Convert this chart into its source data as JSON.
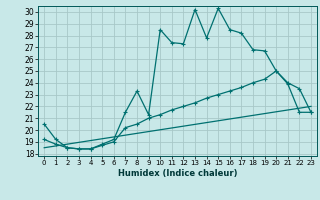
{
  "xlabel": "Humidex (Indice chaleur)",
  "bg_color": "#c8e8e8",
  "grid_color": "#a8c8c8",
  "line_color": "#007070",
  "xlim": [
    -0.5,
    23.5
  ],
  "ylim": [
    17.8,
    30.5
  ],
  "xticks": [
    0,
    1,
    2,
    3,
    4,
    5,
    6,
    7,
    8,
    9,
    10,
    11,
    12,
    13,
    14,
    15,
    16,
    17,
    18,
    19,
    20,
    21,
    22,
    23
  ],
  "yticks": [
    18,
    19,
    20,
    21,
    22,
    23,
    24,
    25,
    26,
    27,
    28,
    29,
    30
  ],
  "curve1_x": [
    0,
    1,
    2,
    3,
    4,
    5,
    6,
    7,
    8,
    9,
    10,
    11,
    12,
    13,
    14,
    15,
    16,
    17,
    18,
    19,
    20,
    21,
    22,
    23
  ],
  "curve1_y": [
    20.5,
    19.2,
    18.5,
    18.4,
    18.4,
    18.8,
    19.2,
    21.5,
    23.3,
    21.3,
    28.5,
    27.4,
    27.3,
    30.2,
    27.8,
    30.3,
    28.5,
    28.2,
    26.8,
    26.7,
    25.0,
    23.9,
    21.5,
    21.5
  ],
  "curve2_x": [
    0,
    1,
    2,
    3,
    4,
    5,
    6,
    7,
    8,
    9,
    10,
    11,
    12,
    13,
    14,
    15,
    16,
    17,
    18,
    19,
    20,
    21,
    22,
    23
  ],
  "curve2_y": [
    19.2,
    18.8,
    18.5,
    18.4,
    18.4,
    18.7,
    19.0,
    20.2,
    20.5,
    21.0,
    21.3,
    21.7,
    22.0,
    22.3,
    22.7,
    23.0,
    23.3,
    23.6,
    24.0,
    24.3,
    25.0,
    24.0,
    23.5,
    21.5
  ],
  "curve3_x": [
    0,
    23
  ],
  "curve3_y": [
    18.5,
    22.0
  ]
}
